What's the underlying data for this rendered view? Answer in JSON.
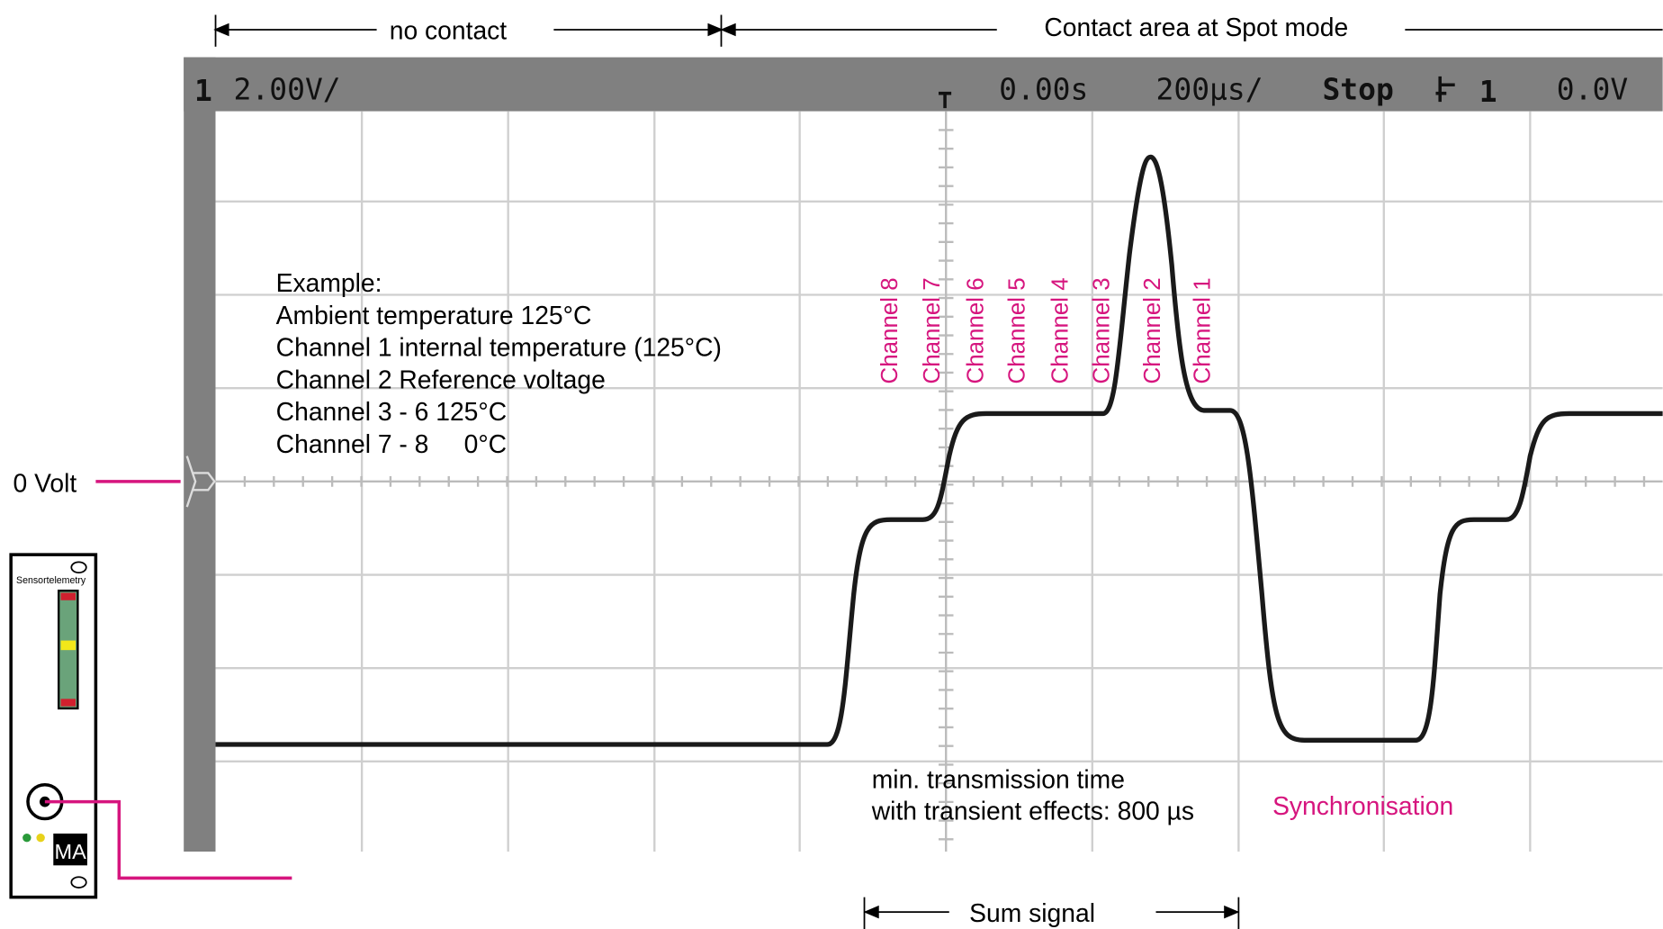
{
  "annotations": {
    "no_contact": "no contact",
    "contact_area": "Contact area at Spot mode",
    "zero_volt": "0 Volt",
    "sum_signal": "Sum signal",
    "synchronisation": "Synchronisation",
    "min_time": [
      "min. transmission time",
      "with transient effects: 800 µs"
    ]
  },
  "scope_header": {
    "channel": "1",
    "scale": "2.00V/",
    "time": "0.00s",
    "timebase": "200µs/",
    "status": "Stop",
    "trigger_channel": "1",
    "trigger_level": "0.0V"
  },
  "channels": [
    "Channel 8",
    "Channel 7",
    "Channel 6",
    "Channel 5",
    "Channel 4",
    "Channel 3",
    "Channel 2",
    "Channel 1"
  ],
  "example": [
    "Example:",
    "Ambient temperature 125°C",
    "Channel 1 internal temperature (125°C)",
    "Channel 2 Reference voltage",
    "Channel 3 - 6 125°C",
    "Channel 7 - 8     0°C"
  ],
  "device": {
    "label": "Sensortelemetry",
    "logo": "MA"
  }
}
